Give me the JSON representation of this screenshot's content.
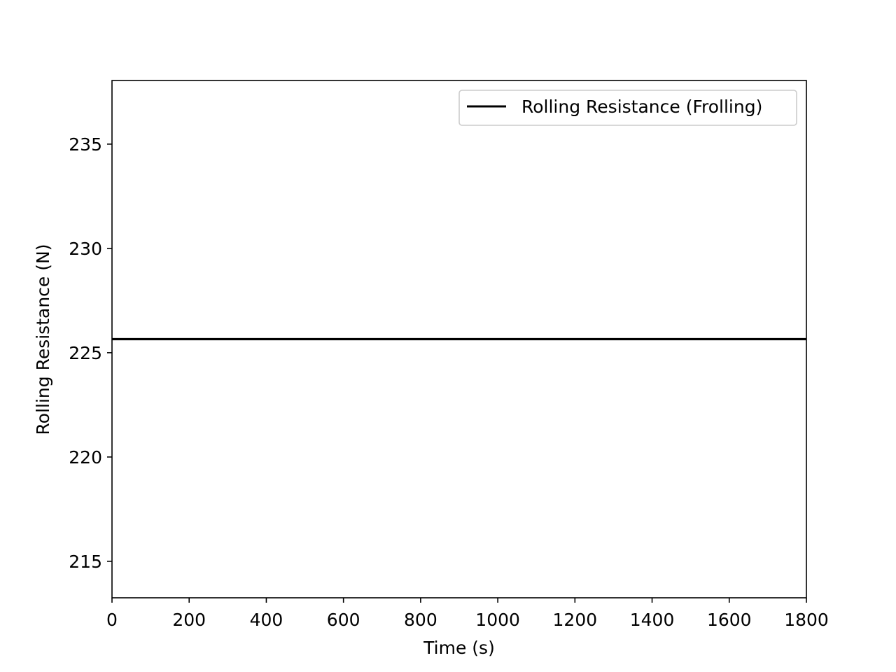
{
  "chart_data": {
    "type": "line",
    "title": "",
    "xlabel": "Time (s)",
    "ylabel": "Rolling Resistance (N)",
    "xlim": [
      0,
      1800
    ],
    "ylim": [
      213.25,
      238.05
    ],
    "x_ticks": [
      0,
      200,
      400,
      600,
      800,
      1000,
      1200,
      1400,
      1600,
      1800
    ],
    "y_ticks": [
      215,
      220,
      225,
      230,
      235
    ],
    "grid": false,
    "legend_position": "top-right",
    "series": [
      {
        "name": "Rolling Resistance (Frolling)",
        "color": "#000000",
        "x": [
          0,
          1800
        ],
        "y": [
          225.65,
          225.65
        ]
      }
    ]
  }
}
